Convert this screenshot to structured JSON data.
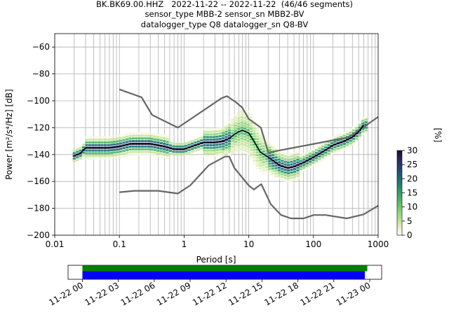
{
  "header": {
    "title_lines": [
      "BK.BK69.00.HHZ   2022-11-22 -- 2022-11-22  (46/46 segments)",
      "sensor_type MBB-2 sensor_sn MBB2-BV",
      "datalogger_type Q8 datalogger_sn Q8-BV"
    ]
  },
  "colors": {
    "noise_models": "#666666",
    "mode_line": "#000000",
    "grid": "#b0b0b0",
    "bar_top": "#008000",
    "bar_bottom": "#0000ff"
  },
  "chart_data": [
    {
      "type": "heatmap",
      "xlabel": "Period [s]",
      "ylabel": "Power [m²/s⁴/Hz] [dB]",
      "xscale": "log",
      "xlim": [
        0.01,
        1000
      ],
      "ylim": [
        -200,
        -50
      ],
      "xticks": [
        0.01,
        0.1,
        1,
        10,
        100,
        1000
      ],
      "xtick_labels": [
        "0.01",
        "0.1",
        "1",
        "10",
        "100",
        "1000"
      ],
      "yticks": [
        -200,
        -180,
        -160,
        -140,
        -120,
        -100,
        -80,
        -60
      ],
      "ytick_labels": [
        "−200",
        "−180",
        "−160",
        "−140",
        "−120",
        "−100",
        "−80",
        "−60"
      ],
      "grid": true,
      "colorbar": {
        "label": "[%]",
        "ticks": [
          0,
          5,
          10,
          15,
          20,
          25,
          30
        ],
        "tick_labels": [
          "0",
          "5",
          "10",
          "15",
          "20",
          "25",
          "30"
        ],
        "range": [
          0,
          30
        ],
        "colormap": "cubehelix_r-like (white to green to dark purple)"
      },
      "series": [
        {
          "role": "mode",
          "x": [
            0.02,
            0.025,
            0.03,
            0.04,
            0.05,
            0.07,
            0.1,
            0.15,
            0.2,
            0.3,
            0.5,
            0.7,
            1,
            1.5,
            2,
            3,
            4,
            5,
            6,
            7,
            8,
            10,
            12,
            15,
            20,
            30,
            40,
            50,
            70,
            100,
            150,
            200,
            300,
            400,
            500,
            600
          ],
          "y": [
            -141,
            -139,
            -135,
            -135,
            -135,
            -135,
            -134,
            -132,
            -132,
            -132,
            -134,
            -136,
            -136,
            -133,
            -131,
            -131,
            -130,
            -128,
            -125,
            -123,
            -122,
            -124,
            -130,
            -138,
            -142,
            -148,
            -150,
            -149,
            -146,
            -142,
            -137,
            -133,
            -130,
            -127,
            -123,
            -118
          ]
        },
        {
          "role": "noise-model-high",
          "x": [
            0.1,
            0.22,
            0.32,
            0.8,
            3.8,
            4.6,
            6.3,
            7.9,
            10,
            15.4,
            20,
            354.8,
            1000
          ],
          "y": [
            -91.5,
            -97.4,
            -110.5,
            -120,
            -98,
            -96.5,
            -101,
            -105,
            -113.5,
            -120,
            -138.5,
            -127.1,
            -112
          ]
        },
        {
          "role": "noise-model-low",
          "x": [
            0.1,
            0.17,
            0.4,
            0.8,
            1.24,
            2.4,
            4.3,
            5,
            6,
            10,
            12,
            15.6,
            21.9,
            31.6,
            45,
            70,
            101,
            154,
            328,
            600,
            1000
          ],
          "y": [
            -168,
            -167,
            -167,
            -169,
            -163,
            -148,
            -141.5,
            -141.5,
            -150,
            -163,
            -166,
            -162,
            -177,
            -185,
            -187.5,
            -187.5,
            -185,
            -185,
            -187.5,
            -184.5,
            -178
          ]
        }
      ]
    },
    {
      "type": "bar",
      "orientation": "horizontal",
      "tick_labels": [
        "11-22 00",
        "11-22 03",
        "11-22 06",
        "11-22 09",
        "11-22 12",
        "11-22 15",
        "11-22 18",
        "11-22 21",
        "11-23 00"
      ],
      "x_hours": [
        0,
        3,
        6,
        9,
        12,
        15,
        18,
        21,
        24
      ],
      "xlim_hours": [
        -1.2,
        25
      ],
      "series": [
        {
          "role": "top-bar",
          "start_hours": 0,
          "end_hours": 23.8,
          "color": "#008000"
        },
        {
          "role": "bottom-bar",
          "start_hours": 0,
          "end_hours": 23.6,
          "color": "#0000ff"
        }
      ]
    }
  ]
}
